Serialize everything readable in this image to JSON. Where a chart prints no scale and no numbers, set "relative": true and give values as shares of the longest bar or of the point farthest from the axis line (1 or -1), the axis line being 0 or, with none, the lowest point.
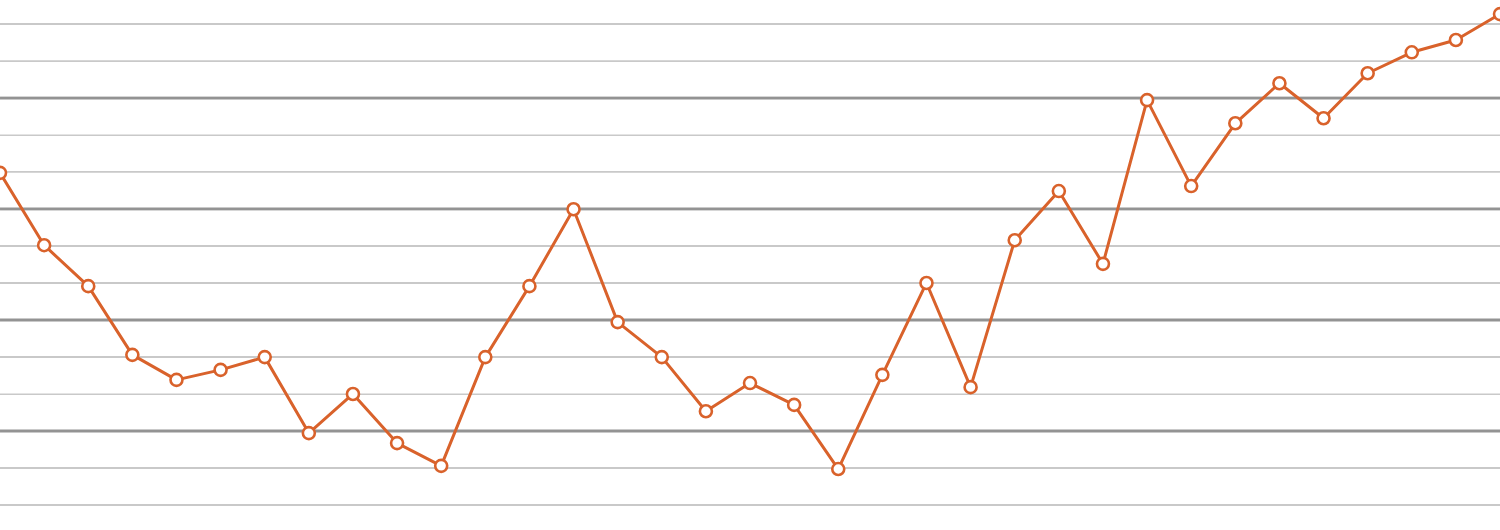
{
  "chart_data": {
    "type": "line",
    "relative": true,
    "grid": "y",
    "marker": "circle",
    "line_style": "solid",
    "categories": [
      null,
      null,
      null,
      null,
      null,
      null,
      null,
      null,
      null,
      null,
      null,
      null,
      null,
      null,
      null,
      null,
      null,
      null,
      null,
      null,
      null,
      null,
      null,
      null,
      null,
      null,
      null,
      null,
      null,
      null,
      null,
      null,
      null,
      null,
      null
    ],
    "series": [
      {
        "color": "#d9622b",
        "values": [
          0.651,
          0.492,
          0.402,
          0.251,
          0.196,
          0.218,
          0.246,
          0.079,
          0.165,
          0.057,
          0.007,
          0.246,
          0.402,
          0.571,
          0.323,
          0.246,
          0.127,
          0.189,
          0.141,
          0,
          0.207,
          0.409,
          0.18,
          0.503,
          0.611,
          0.451,
          0.811,
          0.622,
          0.76,
          0.848,
          0.771,
          0.87,
          0.916,
          0.943,
          1
        ]
      }
    ]
  }
}
